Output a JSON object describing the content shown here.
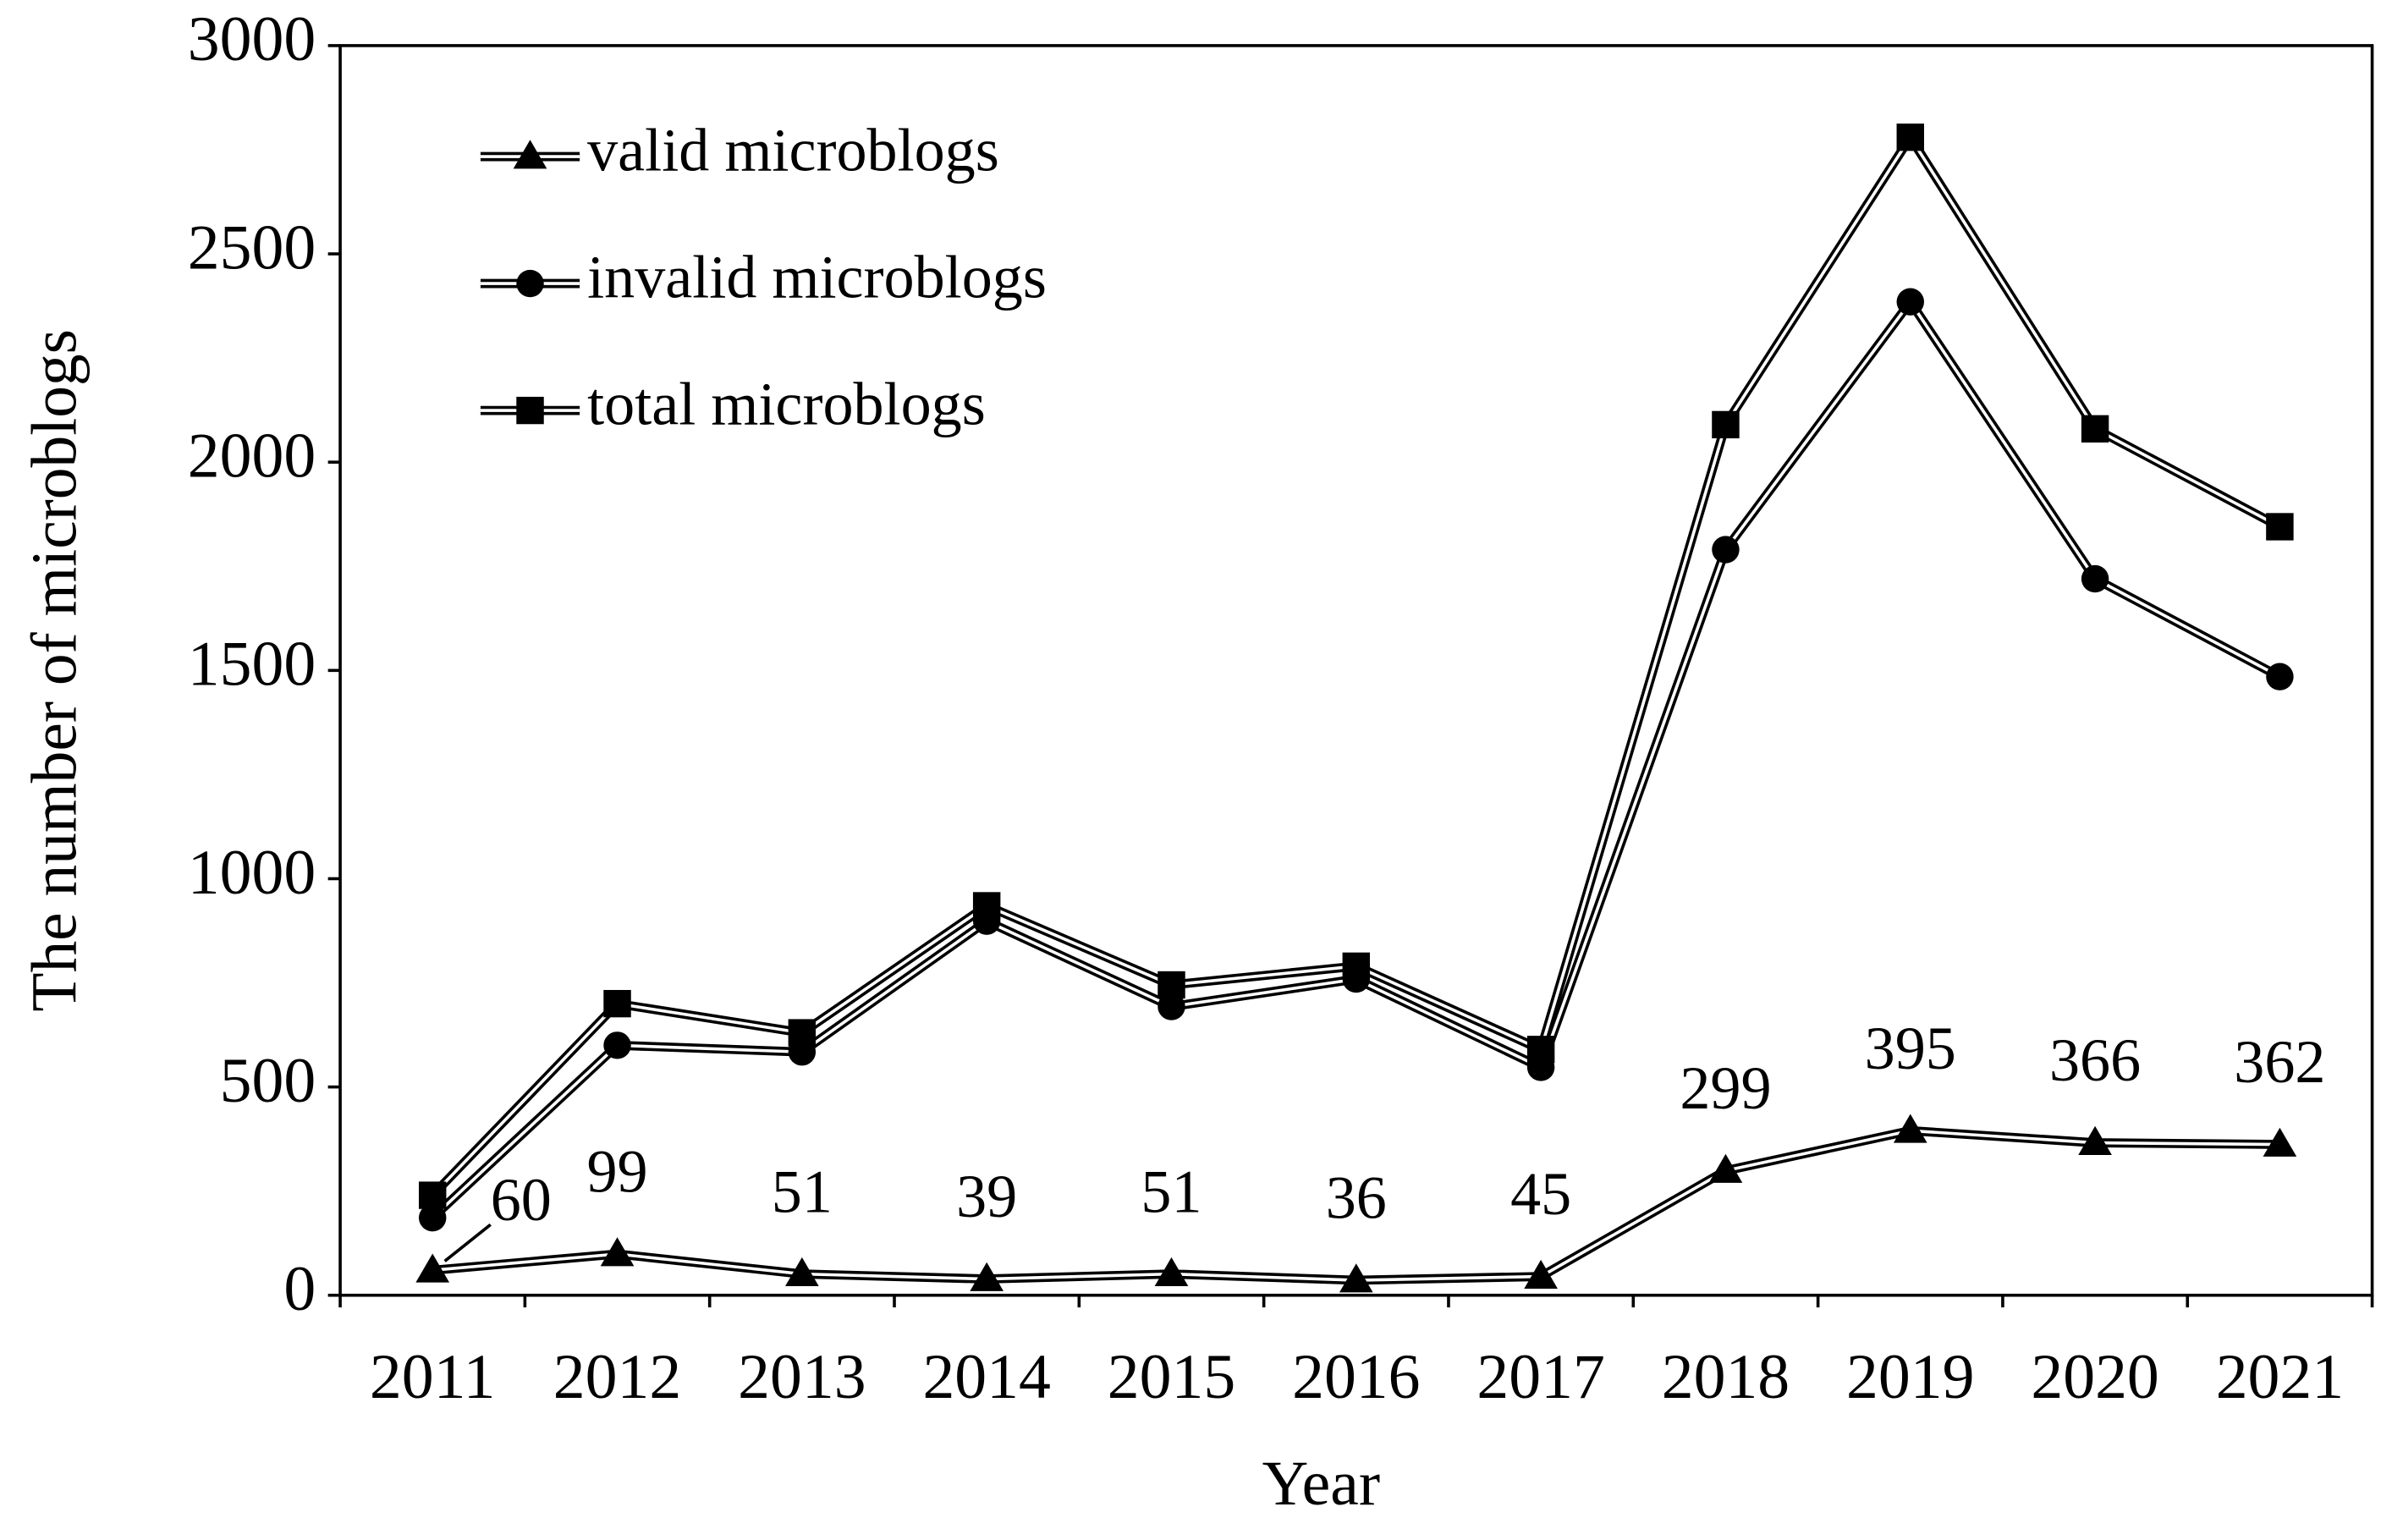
{
  "chart_data": {
    "type": "line",
    "x_label": "Year",
    "y_label": "The number of microblogs",
    "categories": [
      "2011",
      "2012",
      "2013",
      "2014",
      "2015",
      "2016",
      "2017",
      "2018",
      "2019",
      "2020",
      "2021"
    ],
    "series": [
      {
        "name": "valid microblogs",
        "marker": "triangle",
        "color": "#000000",
        "values": [
          60,
          99,
          51,
          39,
          51,
          36,
          45,
          299,
          395,
          366,
          362
        ],
        "data_labels": true
      },
      {
        "name": "invalid microblogs",
        "marker": "circle",
        "color": "#000000",
        "values": [
          186,
          600,
          584,
          898,
          693,
          759,
          547,
          1790,
          2385,
          1720,
          1485
        ]
      },
      {
        "name": "total microblogs",
        "marker": "square",
        "color": "#000000",
        "values": [
          240,
          700,
          630,
          935,
          745,
          790,
          590,
          2090,
          2780,
          2080,
          1845
        ]
      }
    ],
    "ylim": [
      0,
      3000
    ],
    "yticks": [
      0,
      500,
      1000,
      1500,
      2000,
      2500,
      3000
    ],
    "legend": "upper left",
    "grid": false
  }
}
